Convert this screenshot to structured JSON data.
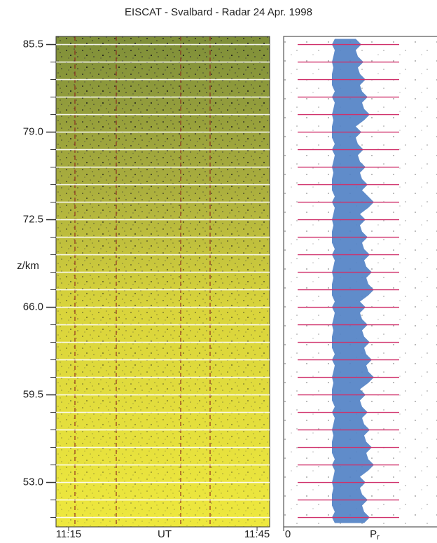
{
  "chart_data": [
    {
      "type": "rti",
      "title": "EISCAT - Svalbard - Radar   24 Apr. 1998",
      "ylabel": "z/km",
      "xlabel": "UT",
      "xlim": [
        673,
        707
      ],
      "xticks": [
        {
          "value": 675,
          "label": "11:15"
        },
        {
          "value": 705,
          "label": "11:45"
        }
      ],
      "ylim": [
        49.7,
        86.1
      ],
      "yticks": [
        85.5,
        {
          "value": 79.0,
          "label": "79.0"
        },
        72.5,
        {
          "value": 66.0,
          "label": "66.0"
        },
        59.5,
        {
          "value": 53.0,
          "label": "53.0"
        }
      ],
      "yminor": [
        85.5,
        84.2,
        82.9,
        81.6,
        80.3,
        79.0,
        77.7,
        76.4,
        75.1,
        73.8,
        72.5,
        71.2,
        69.9,
        68.6,
        67.3,
        66.0,
        64.7,
        63.4,
        62.1,
        60.8,
        59.5,
        58.2,
        56.9,
        55.6,
        54.3,
        53.0,
        51.7,
        50.4
      ]
    },
    {
      "type": "profile",
      "xlabel": "P",
      "xlabel_subscript": "r",
      "xlim": [
        0,
        1
      ],
      "xticks": [
        0
      ]
    }
  ]
}
